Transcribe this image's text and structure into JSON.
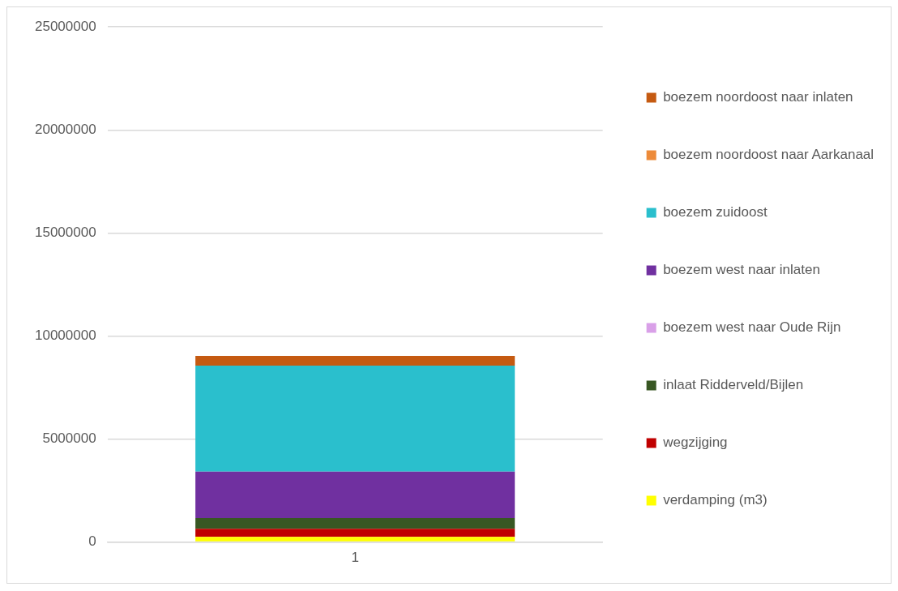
{
  "chart_data": {
    "type": "bar",
    "stacked": true,
    "categories": [
      "1"
    ],
    "series": [
      {
        "name": "verdamping (m3)",
        "color": "#ffff00",
        "values": [
          250000
        ]
      },
      {
        "name": "wegzijging",
        "color": "#c00000",
        "values": [
          390000
        ]
      },
      {
        "name": "inlaat Ridderveld/Bijlen",
        "color": "#385723",
        "values": [
          520000
        ]
      },
      {
        "name": "boezem west naar Oude Rijn",
        "color": "#d9a0e8",
        "values": [
          0
        ]
      },
      {
        "name": "boezem west naar inlaten",
        "color": "#7030a0",
        "values": [
          2260000
        ]
      },
      {
        "name": "boezem zuidoost",
        "color": "#2abfcd",
        "values": [
          5140000
        ]
      },
      {
        "name": "boezem noordoost naar Aarkanaal",
        "color": "#ed8b3a",
        "values": [
          0
        ]
      },
      {
        "name": "boezem noordoost naar inlaten",
        "color": "#c55a11",
        "values": [
          470000
        ]
      }
    ],
    "ylim": [
      0,
      25000000
    ],
    "yticks": [
      0,
      5000000,
      10000000,
      15000000,
      20000000,
      25000000
    ],
    "grid": "y",
    "legend": "right"
  }
}
